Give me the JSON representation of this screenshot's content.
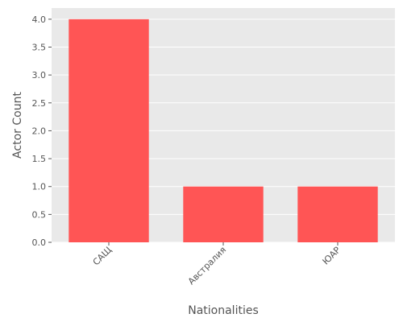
{
  "chart_data": {
    "type": "bar",
    "title": "",
    "xlabel": "Nationalities",
    "ylabel": "Actor Count",
    "categories": [
      "САЩ",
      "Австралия",
      "ЮАР"
    ],
    "values": [
      4,
      1,
      1
    ],
    "ylim": [
      0,
      4.2
    ],
    "yticks": [
      "0.0",
      "0.5",
      "1.0",
      "1.5",
      "2.0",
      "2.5",
      "3.0",
      "3.5",
      "4.0"
    ],
    "grid": true,
    "legend": "none",
    "colors": {
      "bar": "#ff5555",
      "plot_background": "#e9e9e9",
      "grid": "#ffffff",
      "text": "#555555"
    }
  }
}
